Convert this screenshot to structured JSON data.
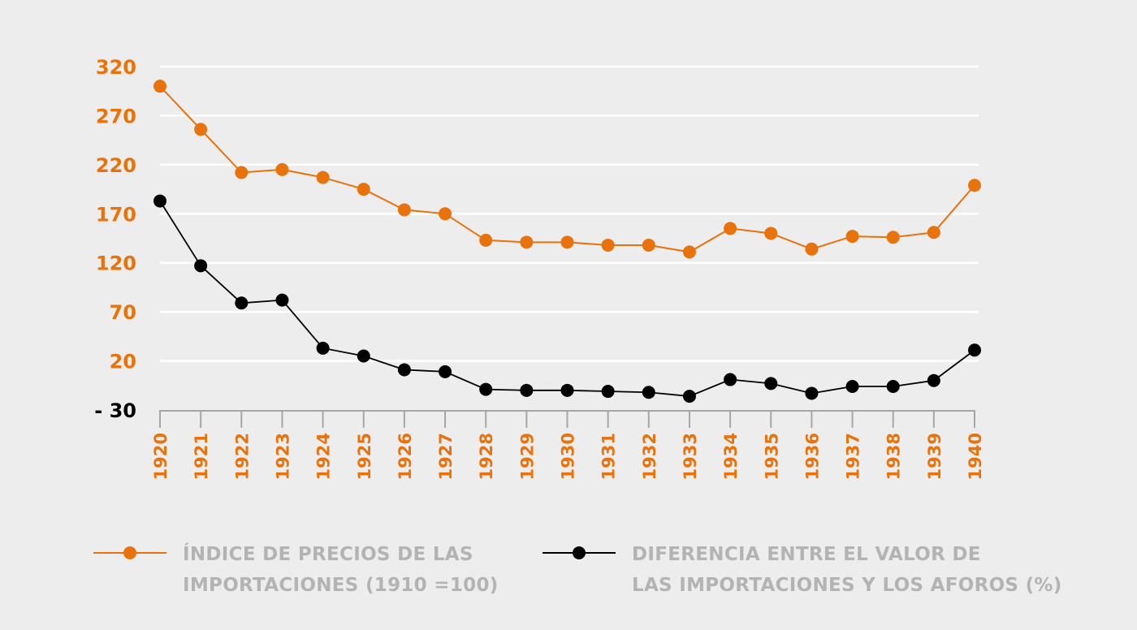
{
  "chart_data": {
    "type": "line",
    "title": "",
    "xlabel": "",
    "ylabel": "",
    "x": [
      "1920",
      "1921",
      "1922",
      "1923",
      "1924",
      "1925",
      "1926",
      "1927",
      "1928",
      "1929",
      "1930",
      "1931",
      "1932",
      "1933",
      "1934",
      "1935",
      "1936",
      "1937",
      "1938",
      "1939",
      "1940"
    ],
    "yticks": [
      320,
      270,
      220,
      170,
      120,
      70,
      20,
      -30
    ],
    "ytick_labels": [
      "320",
      "270",
      "220",
      "170",
      "120",
      "70",
      "20",
      "- 30"
    ],
    "ylim": [
      -30,
      320
    ],
    "grid": true,
    "legend_position": "bottom",
    "series": [
      {
        "name": "ÍNDICE DE PRECIOS DE LAS IMPORTACIONES (1910 =100)",
        "legend_lines": [
          "ÍNDICE DE PRECIOS DE LAS",
          "IMPORTACIONES (1910 =100)"
        ],
        "color": "#e8720c",
        "values": [
          300,
          256,
          212,
          215,
          207,
          195,
          174,
          170,
          143,
          141,
          141,
          138,
          138,
          131,
          155,
          150,
          134,
          147,
          146,
          151,
          199
        ]
      },
      {
        "name": "DIFERENCIA ENTRE EL VALOR DE LAS IMPORTACIONES Y LOS AFOROS (%)",
        "legend_lines": [
          "DIFERENCIA ENTRE EL VALOR DE",
          "LAS IMPORTACIONES Y LOS AFOROS (%)"
        ],
        "color": "#000000",
        "values": [
          183,
          117,
          79,
          82,
          33,
          25,
          11,
          9,
          -9,
          -10,
          -10,
          -11,
          -12,
          -16,
          1,
          -3,
          -13,
          -6,
          -6,
          0,
          31
        ]
      }
    ]
  },
  "colors": {
    "background": "#ededed",
    "gridline": "#ffffff",
    "axis": "#a6a6a6",
    "tick_label": "#e8720c",
    "tick_label_negative": "#000000",
    "legend_text": "#b3b3b3"
  }
}
